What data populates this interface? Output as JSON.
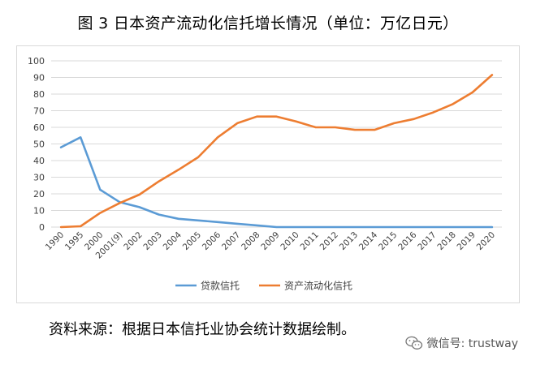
{
  "title": "图 3  日本资产流动化信托增长情况（单位：万亿日元）",
  "source_note": "资料来源：根据日本信托业协会统计数据绘制。",
  "watermark": "微信号: trustway",
  "chart_data": {
    "type": "line",
    "categories": [
      "1990",
      "1995",
      "2000",
      "2001(9)",
      "2002",
      "2003",
      "2004",
      "2005",
      "2006",
      "2007",
      "2008",
      "2009",
      "2010",
      "2011",
      "2012",
      "2013",
      "2014",
      "2015",
      "2016",
      "2017",
      "2018",
      "2019",
      "2020"
    ],
    "series": [
      {
        "name": "贷款信托",
        "color": "#5b9bd5",
        "values": [
          48,
          54,
          22.5,
          15,
          12,
          7.5,
          5,
          4,
          3,
          2,
          1,
          0,
          0,
          0,
          0,
          0,
          0,
          0,
          0,
          0,
          0,
          0,
          0
        ]
      },
      {
        "name": "资产流动化信托",
        "color": "#ed7d31",
        "values": [
          0,
          0.5,
          8.5,
          14.5,
          19.5,
          27.5,
          34.5,
          42,
          54,
          62.5,
          66.5,
          66.5,
          63.5,
          60,
          60,
          58.5,
          58.5,
          62.5,
          65,
          69,
          74,
          81,
          91.5
        ]
      }
    ],
    "ylim": [
      0,
      100
    ],
    "yticks": [
      0,
      10,
      20,
      30,
      40,
      50,
      60,
      70,
      80,
      90,
      100
    ],
    "grid": true,
    "legend_position": "bottom"
  }
}
